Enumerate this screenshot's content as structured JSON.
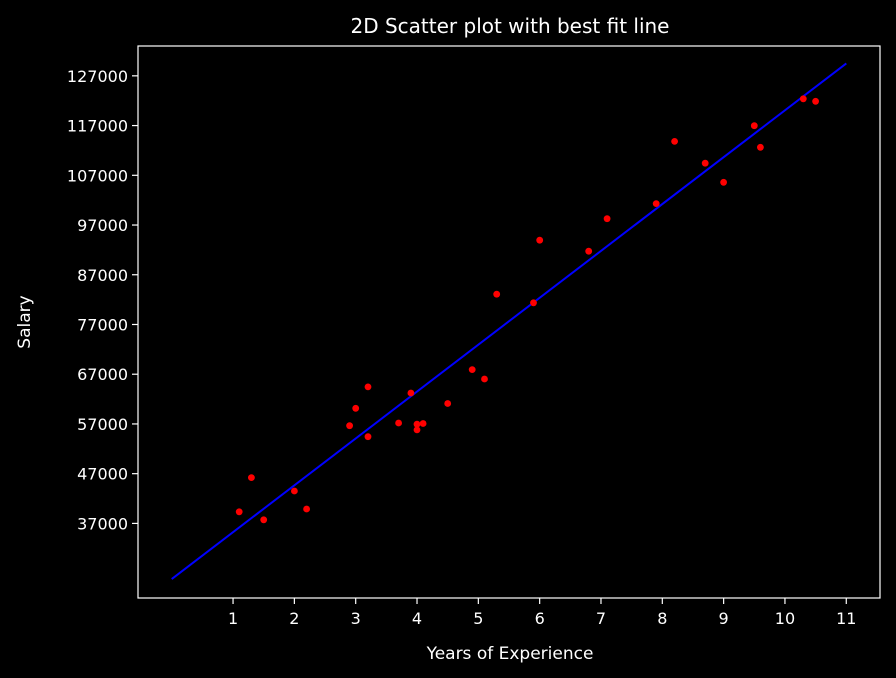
{
  "chart_data": {
    "type": "scatter",
    "title": "2D Scatter plot with best fit line",
    "xlabel": "Years of Experience",
    "ylabel": "Salary",
    "xlim": [
      -0.55,
      11.55
    ],
    "ylim": [
      22000,
      133000
    ],
    "xticks": [
      1,
      2,
      3,
      4,
      5,
      6,
      7,
      8,
      9,
      10,
      11
    ],
    "yticks": [
      37000,
      47000,
      57000,
      67000,
      77000,
      87000,
      97000,
      107000,
      117000,
      127000
    ],
    "grid": false,
    "background": "#000000",
    "axes_color": "#ffffff",
    "series": [
      {
        "kind": "points",
        "color": "#ff0000",
        "x": [
          1.1,
          1.3,
          1.5,
          2.0,
          2.2,
          2.9,
          3.0,
          3.2,
          3.2,
          3.7,
          3.9,
          4.0,
          4.0,
          4.1,
          4.5,
          4.9,
          5.1,
          5.3,
          5.9,
          6.0,
          6.8,
          7.1,
          7.9,
          8.2,
          8.7,
          9.0,
          9.5,
          9.6,
          10.3,
          10.5
        ],
        "y": [
          39343,
          46205,
          37731,
          43525,
          39891,
          56642,
          60150,
          54445,
          64445,
          57189,
          63218,
          55794,
          56957,
          57081,
          61111,
          67938,
          66029,
          83088,
          81363,
          93940,
          91738,
          98273,
          101302,
          113812,
          109431,
          105582,
          116969,
          112635,
          122391,
          121872
        ]
      },
      {
        "kind": "line",
        "color": "#0000ff",
        "x": [
          0,
          11
        ],
        "y": [
          25800,
          129500
        ]
      }
    ]
  }
}
